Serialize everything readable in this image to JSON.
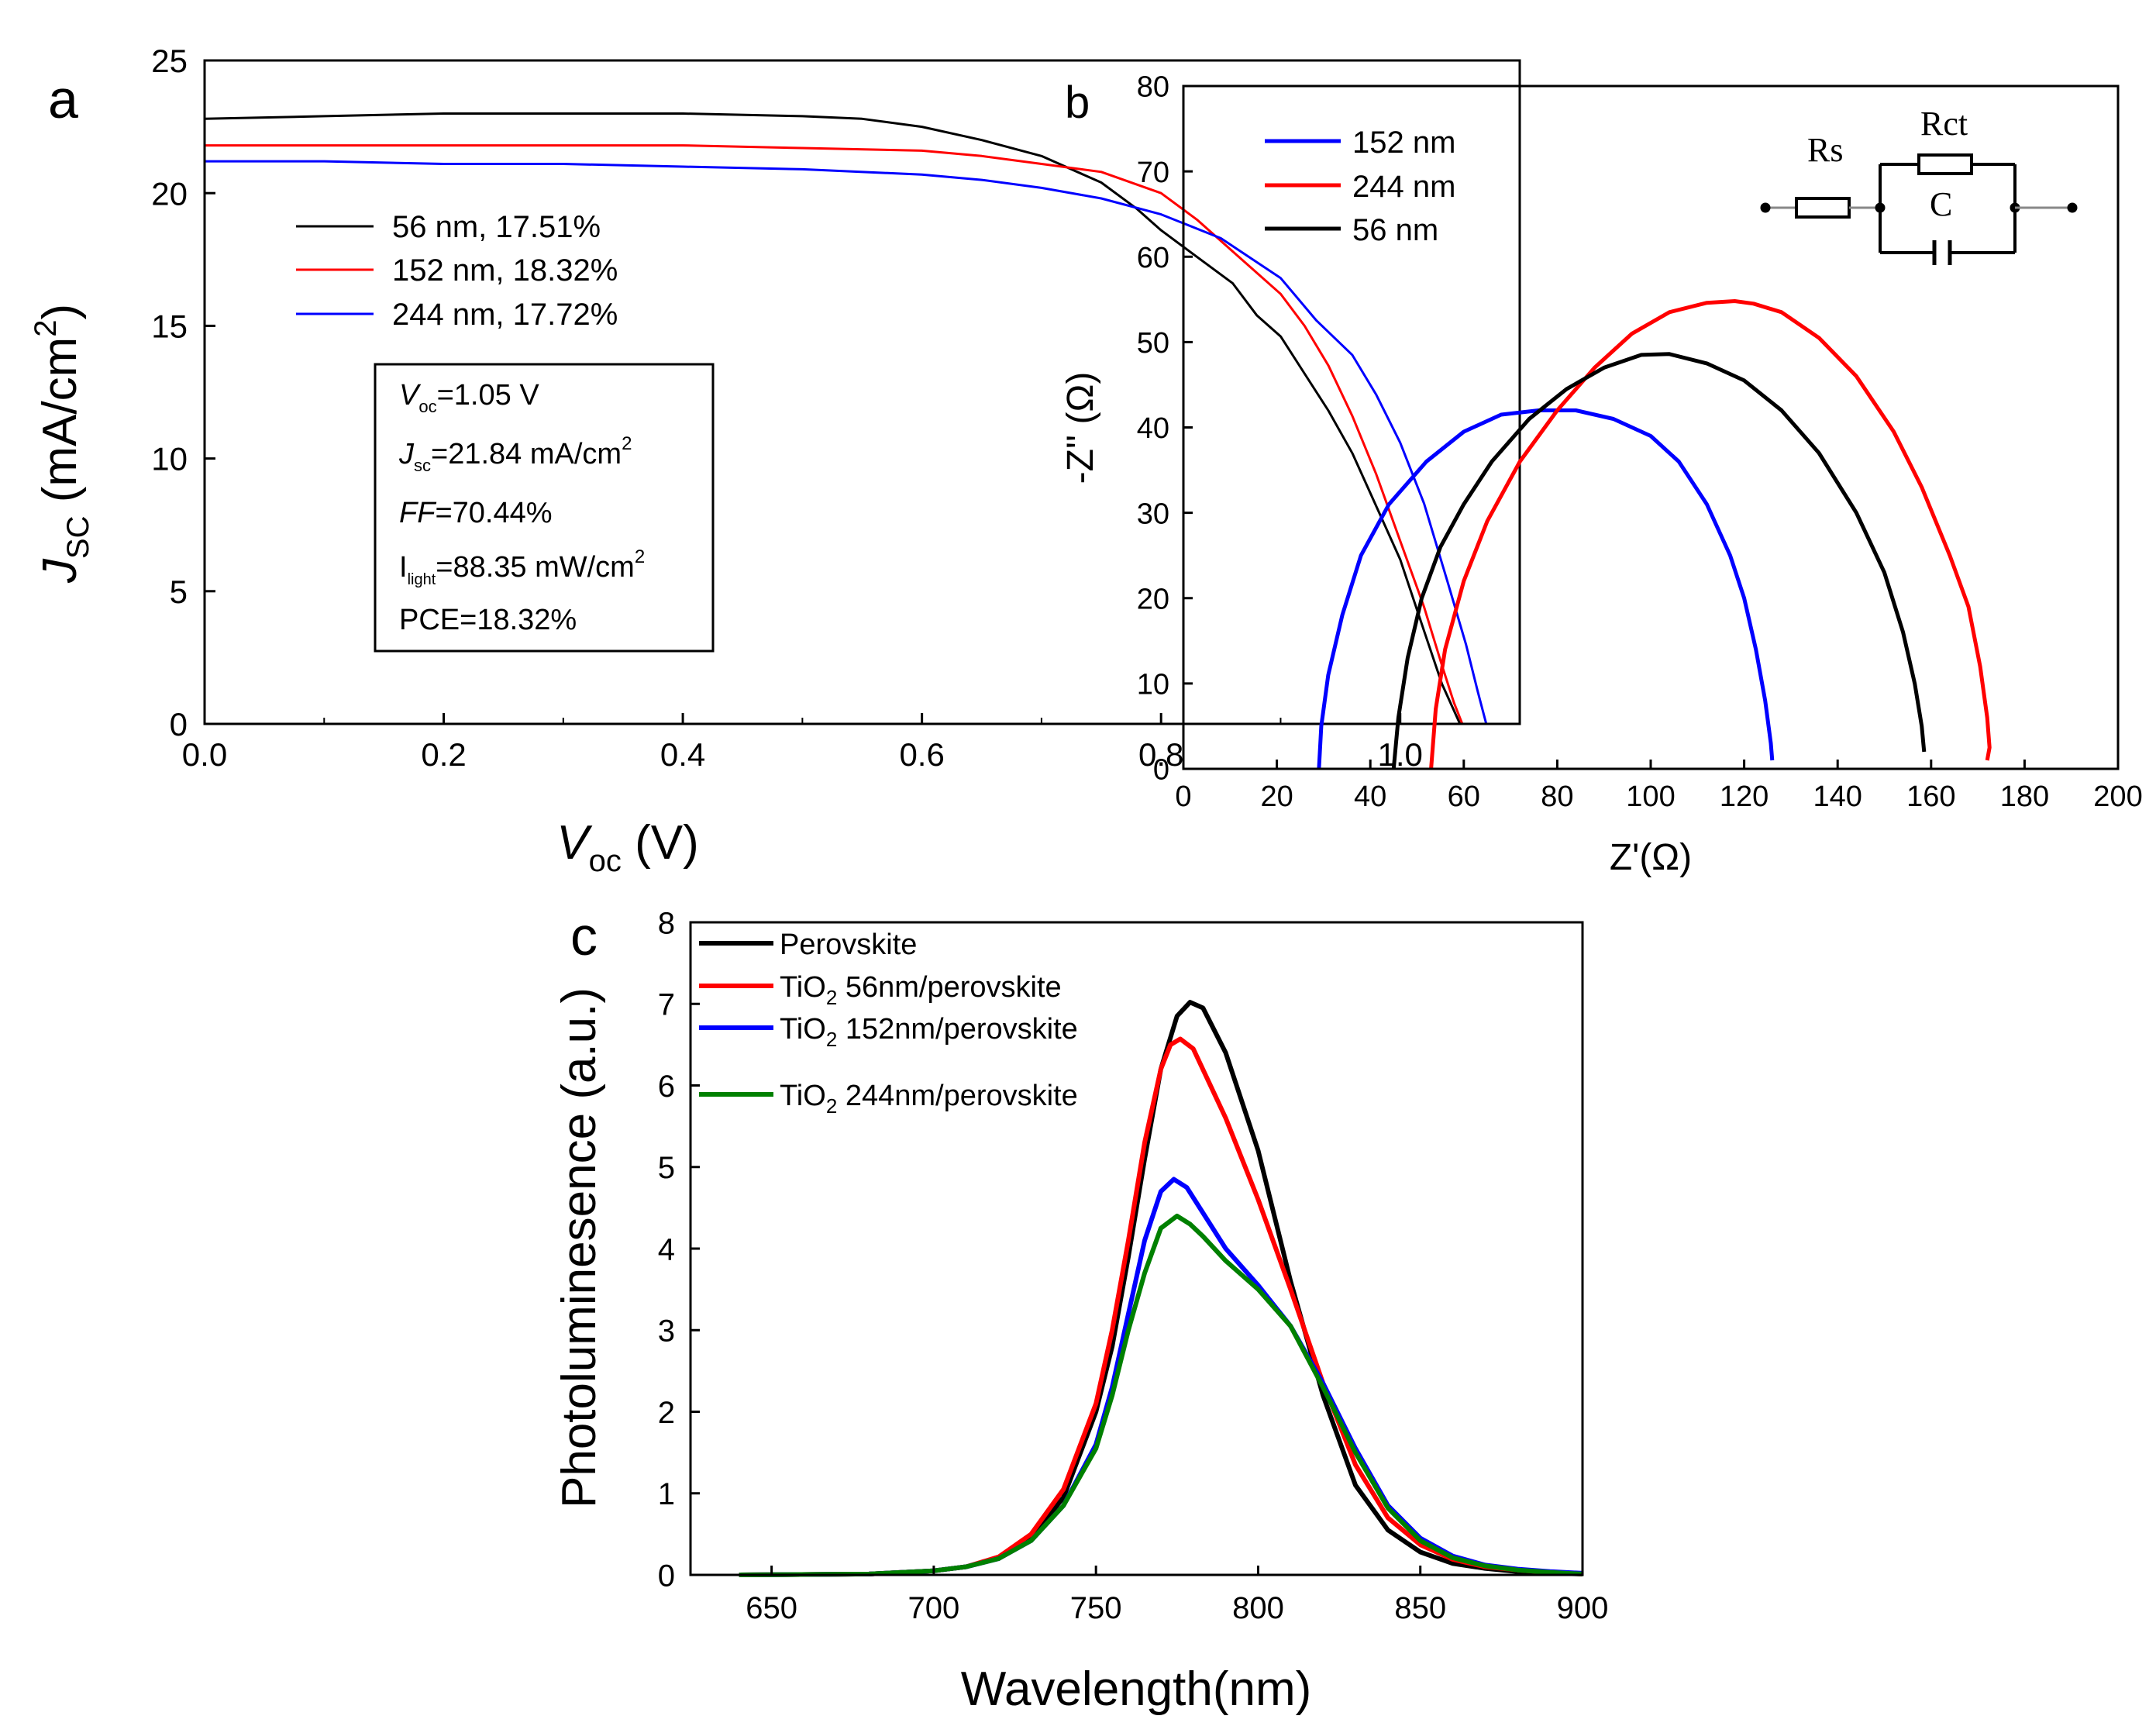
{
  "chart_data": [
    {
      "id": "a",
      "panel_label": "a",
      "type": "line",
      "xlabel_main": "V",
      "xlabel_sub": "oc",
      "xlabel_unit": " (V)",
      "ylabel_main": "J",
      "ylabel_sub": "SC",
      "ylabel_unit": " (mA/cm",
      "ylabel_sup": "2",
      "ylabel_close": ")",
      "xlim": [
        0.0,
        1.1
      ],
      "ylim": [
        0,
        25
      ],
      "xticks": [
        0.0,
        0.2,
        0.4,
        0.6,
        0.8,
        1.0
      ],
      "xtick_labels": [
        "0.0",
        "0.2",
        "0.4",
        "0.6",
        "0.8",
        "1.0"
      ],
      "yticks": [
        0,
        5,
        10,
        15,
        20,
        25
      ],
      "ytick_labels": [
        "0",
        "5",
        "10",
        "15",
        "20",
        "25"
      ],
      "series": [
        {
          "name": "56 nm, 17.51%",
          "color": "#000000",
          "x": [
            0,
            0.1,
            0.2,
            0.3,
            0.4,
            0.5,
            0.55,
            0.6,
            0.65,
            0.7,
            0.75,
            0.78,
            0.8,
            0.83,
            0.86,
            0.88,
            0.9,
            0.92,
            0.94,
            0.96,
            0.98,
            1.0,
            1.02,
            1.035,
            1.05
          ],
          "y": [
            22.8,
            22.9,
            23.0,
            23.0,
            23.0,
            22.9,
            22.8,
            22.5,
            22.0,
            21.4,
            20.4,
            19.4,
            18.6,
            17.6,
            16.6,
            15.4,
            14.6,
            13.2,
            11.8,
            10.2,
            8.2,
            6.2,
            3.5,
            1.5,
            0
          ]
        },
        {
          "name": "152 nm, 18.32%",
          "color": "#ff0000",
          "x": [
            0,
            0.1,
            0.2,
            0.3,
            0.4,
            0.5,
            0.6,
            0.65,
            0.7,
            0.75,
            0.8,
            0.83,
            0.86,
            0.9,
            0.92,
            0.94,
            0.96,
            0.98,
            1.0,
            1.02,
            1.035,
            1.045,
            1.052
          ],
          "y": [
            21.8,
            21.8,
            21.8,
            21.8,
            21.8,
            21.7,
            21.6,
            21.4,
            21.1,
            20.8,
            20.0,
            19.0,
            17.8,
            16.2,
            15.0,
            13.5,
            11.6,
            9.4,
            6.9,
            4.4,
            2.2,
            0.8,
            0
          ]
        },
        {
          "name": "244 nm, 17.72%",
          "color": "#0000ff",
          "x": [
            0,
            0.1,
            0.2,
            0.3,
            0.4,
            0.5,
            0.6,
            0.65,
            0.7,
            0.75,
            0.8,
            0.85,
            0.9,
            0.93,
            0.96,
            0.98,
            1.0,
            1.02,
            1.04,
            1.055,
            1.065,
            1.072
          ],
          "y": [
            21.2,
            21.2,
            21.1,
            21.1,
            21.0,
            20.9,
            20.7,
            20.5,
            20.2,
            19.8,
            19.2,
            18.3,
            16.8,
            15.2,
            13.9,
            12.4,
            10.6,
            8.3,
            5.3,
            3.0,
            1.2,
            0
          ]
        }
      ],
      "annotation": {
        "voc_sub": "oc",
        "voc_text": "=1.05 V",
        "jsc_sub": "sc",
        "jsc_text": "=21.84 mA/cm",
        "jsc_sup": "2",
        "ff_label": "FF",
        "ff_text": "=70.44%",
        "ilight_main": "I",
        "ilight_sub": "light",
        "ilight_text": "=88.35 mW/cm",
        "ilight_sup": "2",
        "pce_text": "PCE=18.32%"
      }
    },
    {
      "id": "b",
      "panel_label": "b",
      "type": "line",
      "xlabel": "Z'(Ω)",
      "ylabel": "-Z'' (Ω)",
      "xlim": [
        0,
        200
      ],
      "ylim": [
        0,
        80
      ],
      "xticks": [
        0,
        20,
        40,
        60,
        80,
        100,
        120,
        140,
        160,
        180,
        200
      ],
      "xtick_labels": [
        "0",
        "20",
        "40",
        "60",
        "80",
        "100",
        "120",
        "140",
        "160",
        "180",
        "200"
      ],
      "yticks": [
        0,
        10,
        20,
        30,
        40,
        50,
        60,
        70,
        80
      ],
      "ytick_labels": [
        "0",
        "10",
        "20",
        "30",
        "40",
        "50",
        "60",
        "70",
        "80"
      ],
      "series": [
        {
          "name": "152 nm",
          "color": "#0000ff",
          "x": [
            29,
            29.5,
            31,
            34,
            38,
            44,
            52,
            60,
            68,
            76,
            84,
            92,
            100,
            106,
            112,
            117,
            120,
            122.5,
            124.5,
            125.7,
            126
          ],
          "y": [
            0,
            5,
            11,
            18,
            25,
            31,
            36,
            39.5,
            41.5,
            42,
            42,
            41,
            39,
            36,
            31,
            25,
            20,
            14,
            8,
            3,
            1
          ]
        },
        {
          "name": "244 nm",
          "color": "#ff0000",
          "x": [
            53,
            54,
            56,
            60,
            65,
            72,
            80,
            88,
            96,
            104,
            112,
            118,
            122,
            128,
            136,
            144,
            152,
            158,
            164,
            168,
            170.5,
            172,
            172.5,
            172
          ],
          "y": [
            0,
            7,
            14,
            22,
            29,
            36,
            42,
            47,
            51,
            53.5,
            54.6,
            54.8,
            54.5,
            53.5,
            50.5,
            46,
            39.5,
            33,
            25,
            19,
            12,
            6,
            2.5,
            1
          ]
        },
        {
          "name": "56 nm",
          "color": "#000000",
          "x": [
            45,
            46,
            48,
            51,
            55,
            60,
            66,
            74,
            82,
            90,
            98,
            104,
            112,
            120,
            128,
            136,
            144,
            150,
            154,
            156.5,
            158,
            158.5
          ],
          "y": [
            0,
            6,
            13,
            20,
            26,
            31,
            36,
            41,
            44.5,
            47,
            48.5,
            48.6,
            47.5,
            45.5,
            42,
            37,
            30,
            23,
            16,
            10,
            5,
            2
          ]
        }
      ],
      "circuit": {
        "rs": "Rs",
        "rct": "Rct",
        "c": "C"
      }
    },
    {
      "id": "c",
      "panel_label": "c",
      "type": "line",
      "xlabel": "Wavelength(nm)",
      "ylabel": "Photoluminesence (a.u.)",
      "xlim": [
        625,
        900
      ],
      "ylim": [
        0,
        8
      ],
      "xticks": [
        650,
        700,
        750,
        800,
        850,
        900
      ],
      "xtick_labels": [
        "650",
        "700",
        "750",
        "800",
        "850",
        "900"
      ],
      "yticks": [
        0,
        1,
        2,
        3,
        4,
        5,
        6,
        7,
        8
      ],
      "ytick_labels": [
        "0",
        "1",
        "2",
        "3",
        "4",
        "5",
        "6",
        "7",
        "8"
      ],
      "series": [
        {
          "name": "Perovskite",
          "label_main": "Perovskite",
          "label_sub": "",
          "label_rest": "",
          "color": "#000000",
          "x": [
            640,
            680,
            700,
            710,
            720,
            730,
            740,
            750,
            755,
            760,
            765,
            770,
            775,
            779,
            783,
            790,
            800,
            810,
            820,
            830,
            840,
            850,
            860,
            870,
            880,
            890,
            900
          ],
          "y": [
            0,
            0.01,
            0.05,
            0.1,
            0.2,
            0.45,
            0.95,
            2.0,
            2.8,
            3.9,
            5.1,
            6.2,
            6.85,
            7.02,
            6.95,
            6.4,
            5.2,
            3.6,
            2.2,
            1.1,
            0.55,
            0.28,
            0.14,
            0.08,
            0.04,
            0.02,
            0.01
          ]
        },
        {
          "name": "TiO2 56nm/perovskite",
          "label_main": "TiO",
          "label_sub": "2",
          "label_rest": " 56nm/perovskite",
          "color": "#ff0000",
          "x": [
            640,
            680,
            700,
            710,
            720,
            730,
            740,
            750,
            755,
            760,
            765,
            770,
            773,
            776,
            780,
            790,
            800,
            810,
            820,
            830,
            840,
            850,
            860,
            870,
            880,
            890,
            900
          ],
          "y": [
            0,
            0.01,
            0.05,
            0.1,
            0.22,
            0.5,
            1.05,
            2.1,
            3.0,
            4.1,
            5.3,
            6.2,
            6.5,
            6.57,
            6.45,
            5.6,
            4.6,
            3.5,
            2.35,
            1.35,
            0.7,
            0.37,
            0.19,
            0.1,
            0.06,
            0.03,
            0.01
          ]
        },
        {
          "name": "TiO2 152nm/perovskite",
          "label_main": "TiO",
          "label_sub": "2",
          "label_rest": " 152nm/perovskite",
          "color": "#0000ff",
          "x": [
            640,
            680,
            700,
            710,
            720,
            730,
            740,
            750,
            755,
            760,
            765,
            770,
            774,
            778,
            782,
            790,
            800,
            810,
            820,
            830,
            840,
            850,
            860,
            870,
            880,
            890,
            900
          ],
          "y": [
            0,
            0.01,
            0.05,
            0.1,
            0.2,
            0.42,
            0.85,
            1.6,
            2.3,
            3.2,
            4.1,
            4.7,
            4.85,
            4.75,
            4.5,
            4.0,
            3.55,
            3.05,
            2.35,
            1.55,
            0.85,
            0.45,
            0.23,
            0.12,
            0.07,
            0.04,
            0.02
          ]
        },
        {
          "name": "TiO2 244nm/perovskite",
          "label_main": "TiO",
          "label_sub": "2",
          "label_rest": " 244nm/perovskite",
          "color": "#008000",
          "x": [
            640,
            680,
            700,
            710,
            720,
            730,
            740,
            750,
            755,
            760,
            765,
            770,
            775,
            779,
            783,
            790,
            800,
            810,
            820,
            830,
            840,
            850,
            860,
            870,
            880,
            890,
            900
          ],
          "y": [
            0,
            0.01,
            0.05,
            0.1,
            0.2,
            0.42,
            0.85,
            1.55,
            2.2,
            3.0,
            3.7,
            4.25,
            4.4,
            4.3,
            4.15,
            3.85,
            3.5,
            3.05,
            2.3,
            1.5,
            0.82,
            0.42,
            0.21,
            0.11,
            0.06,
            0.03,
            0.01
          ]
        }
      ]
    }
  ]
}
